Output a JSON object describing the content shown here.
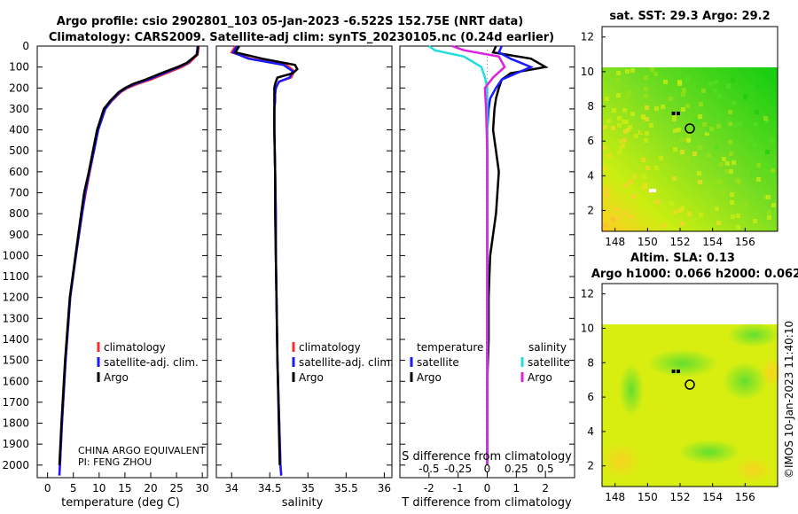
{
  "title": {
    "line1": "Argo profile: csio 2902801_103 05-Jan-2023 -6.522S 152.75E (NRT data)",
    "line2": "Climatology: CARS2009. Satellite-adj clim: synTS_20230105.nc (0.24d earlier)"
  },
  "colors": {
    "climatology": "#ff2a2a",
    "satellite": "#1a1aff",
    "argo": "#000000",
    "sat_T": "#22dddd",
    "sat_S": "#dd22dd"
  },
  "legend": {
    "climatology": "climatology",
    "satellite_adj": "satellite-adj. clim.",
    "argo": "Argo",
    "temperature": "temperature",
    "salinity": "salinity",
    "satellite": "satellite"
  },
  "credit": {
    "line1": "CHINA ARGO EQUIVALENT",
    "line2": "PI: FENG ZHOU"
  },
  "depth_ticks": [
    "0",
    "100",
    "200",
    "300",
    "400",
    "500",
    "600",
    "700",
    "800",
    "900",
    "1000",
    "1100",
    "1200",
    "1300",
    "1400",
    "1500",
    "1600",
    "1700",
    "1800",
    "1900",
    "2000"
  ],
  "chart_data": [
    {
      "type": "line",
      "panel": "temperature",
      "xlabel": "temperature (deg C)",
      "xlim": [
        -2,
        31
      ],
      "ylim": [
        2060,
        0
      ],
      "xticks": [
        "0",
        "5",
        "10",
        "15",
        "20",
        "25",
        "30"
      ],
      "series": [
        {
          "name": "climatology",
          "depth": [
            0,
            40,
            80,
            100,
            130,
            160,
            180,
            200,
            220,
            260,
            300,
            400,
            500,
            600,
            700,
            800,
            1000,
            1200,
            1500,
            1800,
            2000,
            2050
          ],
          "values": [
            29.3,
            29.1,
            27.5,
            26,
            23,
            20,
            17.5,
            15.5,
            14.2,
            12.5,
            11.2,
            9.8,
            9,
            8.2,
            7.4,
            6.7,
            5.5,
            4.4,
            3.5,
            2.8,
            2.4,
            2.3
          ]
        },
        {
          "name": "satellite-adj. clim.",
          "depth": [
            0,
            40,
            80,
            100,
            130,
            160,
            180,
            200,
            220,
            260,
            300,
            400,
            500,
            600,
            700,
            800,
            1000,
            1200,
            1500,
            1800,
            2000,
            2050
          ],
          "values": [
            29.1,
            28.9,
            27.2,
            25.5,
            22.5,
            19.5,
            17,
            15.2,
            14,
            12.4,
            11.2,
            9.8,
            9,
            8.1,
            7.3,
            6.7,
            5.5,
            4.4,
            3.5,
            2.8,
            2.4,
            2.3
          ]
        },
        {
          "name": "Argo",
          "depth": [
            0,
            40,
            80,
            100,
            130,
            160,
            180,
            200,
            220,
            260,
            300,
            400,
            500,
            600,
            700,
            800,
            1000,
            1200,
            1500,
            1800,
            2000
          ],
          "values": [
            29.2,
            29,
            27,
            25.2,
            22,
            19,
            16.6,
            15,
            13.8,
            12.2,
            10.9,
            9.6,
            8.8,
            8,
            7.1,
            6.5,
            5.4,
            4.3,
            3.4,
            2.7,
            2.3
          ]
        }
      ]
    },
    {
      "type": "line",
      "panel": "salinity",
      "xlabel": "salinity",
      "xlim": [
        33.8,
        36.1
      ],
      "ylim": [
        2060,
        0
      ],
      "xticks": [
        "34",
        "34.5",
        "35",
        "35.5",
        "36"
      ],
      "series": [
        {
          "name": "climatology",
          "depth": [
            0,
            30,
            60,
            90,
            120,
            150,
            170,
            200,
            230,
            260,
            300,
            400,
            600,
            800,
            1000,
            1500,
            2000,
            2050
          ],
          "values": [
            34.05,
            34.0,
            34.25,
            34.72,
            34.82,
            34.78,
            34.62,
            34.58,
            34.57,
            34.57,
            34.56,
            34.56,
            34.57,
            34.58,
            34.58,
            34.6,
            34.64,
            34.65
          ]
        },
        {
          "name": "satellite-adj. clim.",
          "depth": [
            0,
            30,
            60,
            90,
            120,
            150,
            170,
            200,
            230,
            260,
            300,
            400,
            600,
            800,
            1000,
            1500,
            2000,
            2050
          ],
          "values": [
            34.07,
            34.02,
            34.22,
            34.68,
            34.8,
            34.76,
            34.62,
            34.58,
            34.57,
            34.57,
            34.56,
            34.56,
            34.57,
            34.58,
            34.58,
            34.6,
            34.64,
            34.65
          ]
        },
        {
          "name": "Argo",
          "depth": [
            0,
            30,
            60,
            90,
            110,
            130,
            150,
            180,
            200,
            240,
            300,
            400,
            600,
            800,
            1000,
            1500,
            2000
          ],
          "values": [
            34.1,
            34.05,
            34.4,
            34.83,
            34.86,
            34.8,
            34.6,
            34.57,
            34.56,
            34.56,
            34.56,
            34.56,
            34.57,
            34.57,
            34.58,
            34.6,
            34.63
          ]
        }
      ]
    },
    {
      "type": "line",
      "panel": "difference",
      "xlabel": "T difference from climatology",
      "xlabel_top": "S difference from climatology",
      "xlim": [
        -3,
        3
      ],
      "ylim": [
        2060,
        0
      ],
      "xticks": [
        "-2",
        "-1",
        "0",
        "1",
        "2"
      ],
      "xticks_top": [
        "-0.5",
        "-0.25",
        "0",
        "0.25",
        "0.5"
      ],
      "series": [
        {
          "name": "temperature Argo",
          "depth": [
            0,
            30,
            60,
            100,
            130,
            160,
            200,
            250,
            300,
            400,
            500,
            600,
            700,
            800,
            1000,
            1200,
            1400,
            1600,
            1800,
            2000
          ],
          "values": [
            0.3,
            0.2,
            1.5,
            2,
            0.8,
            0.5,
            0.4,
            0.3,
            0.25,
            0.2,
            0.3,
            0.4,
            0.35,
            0.3,
            0.1,
            0.05,
            0.05,
            0,
            0,
            0
          ]
        },
        {
          "name": "temperature satellite",
          "depth": [
            0,
            30,
            60,
            100,
            130,
            160,
            200,
            250,
            300,
            400,
            500,
            600,
            700,
            800,
            1000,
            1200,
            1400,
            1600,
            1800,
            2000
          ],
          "values": [
            0.5,
            0.4,
            0.8,
            1.5,
            1.0,
            0.5,
            0.3,
            0.1,
            0.05,
            0,
            0,
            0,
            0,
            0,
            0,
            0,
            0,
            0,
            0,
            0
          ]
        },
        {
          "name": "salinity satellite",
          "depth": [
            0,
            20,
            50,
            100,
            150,
            200,
            300,
            500,
            1000,
            2000
          ],
          "values": [
            -0.5,
            -0.45,
            -0.2,
            -0.05,
            -0.02,
            0,
            0,
            0,
            0,
            0
          ]
        },
        {
          "name": "salinity Argo",
          "depth": [
            0,
            20,
            50,
            100,
            150,
            200,
            300,
            500,
            1000,
            2000
          ],
          "values": [
            -0.3,
            -0.2,
            0.1,
            0.15,
            0.05,
            -0.02,
            -0.01,
            0,
            0,
            0
          ]
        }
      ]
    },
    {
      "type": "heatmap",
      "panel": "SST map",
      "title": "sat. SST: 29.3 Argo: 29.2",
      "xlim": [
        147.2,
        158
      ],
      "ylim": [
        0.8,
        12.6
      ],
      "xticks": [
        "148",
        "150",
        "152",
        "154",
        "156"
      ],
      "yticks": [
        "2",
        "4",
        "6",
        "8",
        "10",
        "12"
      ],
      "marker": {
        "lon": 152.75,
        "lat": 6.522
      }
    },
    {
      "type": "heatmap",
      "panel": "SLA map",
      "title": "Altim. SLA: 0.13",
      "subtitle": "Argo h1000: 0.066 h2000: 0.062",
      "xlim": [
        147.2,
        158
      ],
      "ylim": [
        0.8,
        12.6
      ],
      "xticks": [
        "148",
        "150",
        "152",
        "154",
        "156"
      ],
      "yticks": [
        "2",
        "4",
        "6",
        "8",
        "10",
        "12"
      ],
      "marker": {
        "lon": 152.75,
        "lat": 6.522
      }
    }
  ],
  "footer": "©IMOS 10-Jan-2023 11:40:10"
}
